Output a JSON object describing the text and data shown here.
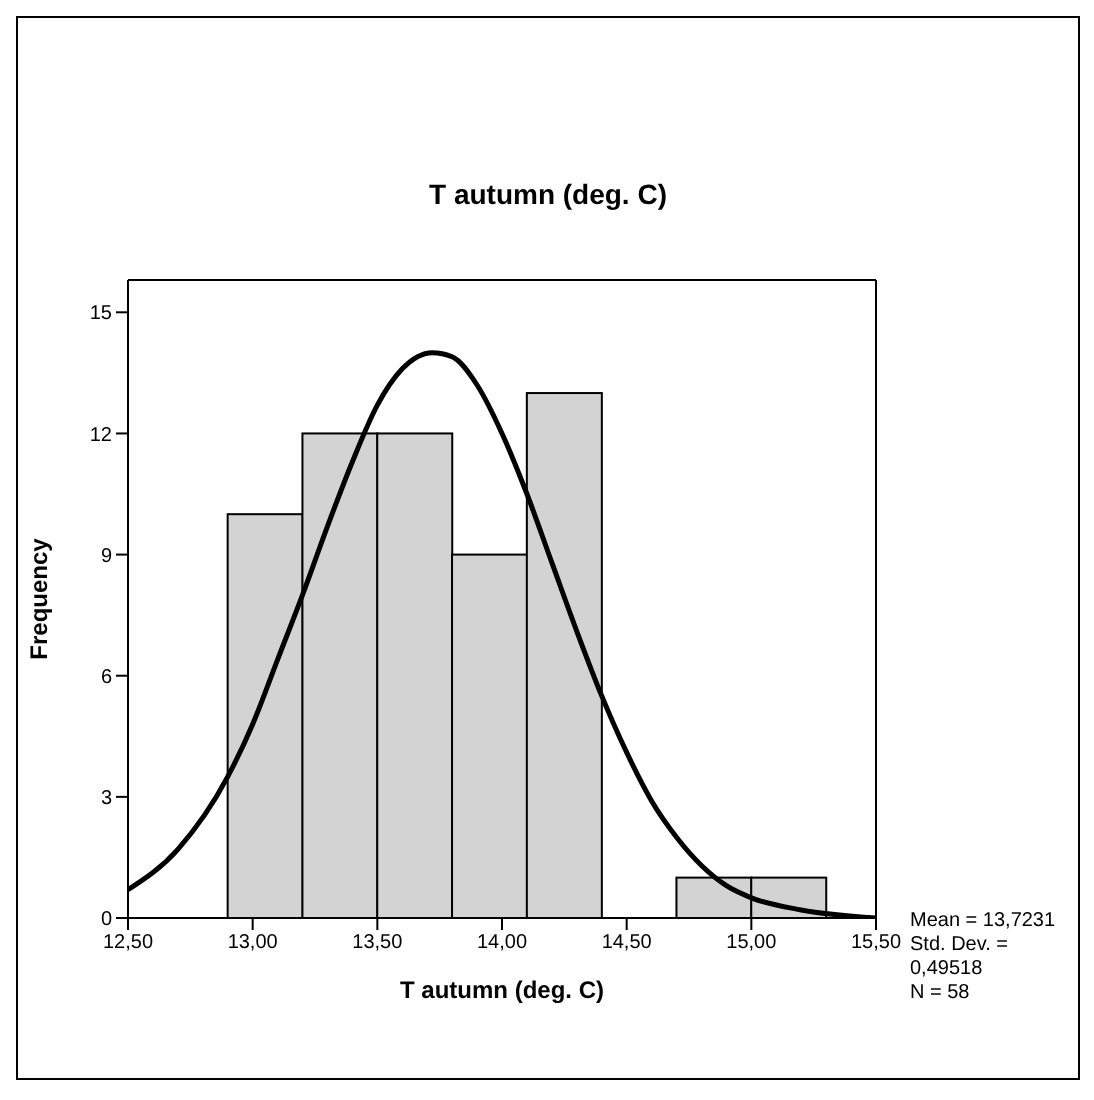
{
  "chart_data": {
    "type": "histogram",
    "title": "T autumn (deg. C)",
    "xlabel": "T autumn (deg. C)",
    "ylabel": "Frequency",
    "bins": [
      12.9,
      13.2,
      13.5,
      13.8,
      14.1,
      14.4,
      14.7,
      15.0,
      15.3
    ],
    "values": [
      10,
      12,
      12,
      9,
      13,
      0,
      1,
      1
    ],
    "color": "#d3d3d3",
    "series": [
      {
        "type": "line",
        "color": "#000000",
        "x": [
          12.5,
          12.7,
          12.9,
          13.0,
          13.1,
          13.2,
          13.3,
          13.4,
          13.5,
          13.6,
          13.72,
          13.8,
          13.9,
          14.0,
          14.1,
          14.2,
          14.3,
          14.4,
          14.5,
          14.6,
          14.7,
          14.8,
          14.9,
          15.0,
          15.2,
          15.5
        ],
        "values": [
          0.7,
          1.7,
          3.5,
          4.8,
          6.4,
          8.0,
          9.7,
          11.3,
          12.7,
          13.6,
          14.0,
          13.9,
          13.2,
          12.0,
          10.5,
          8.8,
          7.1,
          5.5,
          4.1,
          2.9,
          2.0,
          1.3,
          0.8,
          0.5,
          0.2,
          0.0
        ]
      }
    ],
    "xlim": [
      12.5,
      15.5
    ],
    "xticks": [
      {
        "value": 12.5,
        "label": "12,50"
      },
      {
        "value": 13,
        "label": "13,00"
      },
      {
        "value": 13.5,
        "label": "13,50"
      },
      {
        "value": 14,
        "label": "14,00"
      },
      {
        "value": 14.5,
        "label": "14,50"
      },
      {
        "value": 15,
        "label": "15,00"
      },
      {
        "value": 15.5,
        "label": "15,50"
      }
    ],
    "ylim": [
      0,
      15.8
    ],
    "yticks": [
      0,
      3,
      6,
      9,
      12,
      15
    ],
    "annotations": [
      "Mean = 13,7231",
      "Std. Dev. = 0,49518",
      "N = 58"
    ]
  }
}
